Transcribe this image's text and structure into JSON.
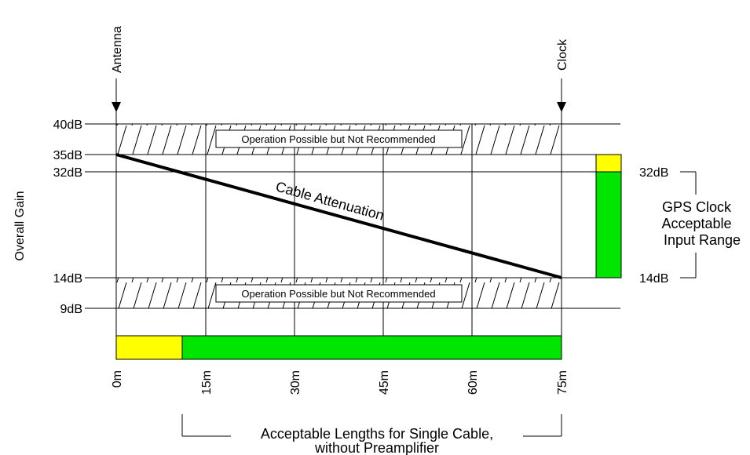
{
  "markers": {
    "antenna": "Antenna",
    "clock": "Clock"
  },
  "y_axis_title": "Overall Gain",
  "gain_levels": [
    {
      "label": "40dB",
      "value": 40
    },
    {
      "label": "35dB",
      "value": 35
    },
    {
      "label": "32dB",
      "value": 32
    },
    {
      "label": "14dB",
      "value": 14
    },
    {
      "label": "9dB",
      "value": 9
    }
  ],
  "distance_ticks": [
    "0m",
    "15m",
    "30m",
    "45m",
    "60m",
    "75m"
  ],
  "warning_label": "Operation Possible but Not Recommended",
  "attenuation_label": "Cable Attenuation",
  "gps_range": {
    "upper_label": "32dB",
    "lower_label": "14dB",
    "title_lines": [
      "GPS Clock",
      "Acceptable",
      "Input Range"
    ]
  },
  "cable_length_caption": [
    "Acceptable Lengths for Single Cable,",
    "without Preamplifier"
  ],
  "colors": {
    "yellow": "#ffff00",
    "green": "#00e600",
    "line": "#000000"
  }
}
